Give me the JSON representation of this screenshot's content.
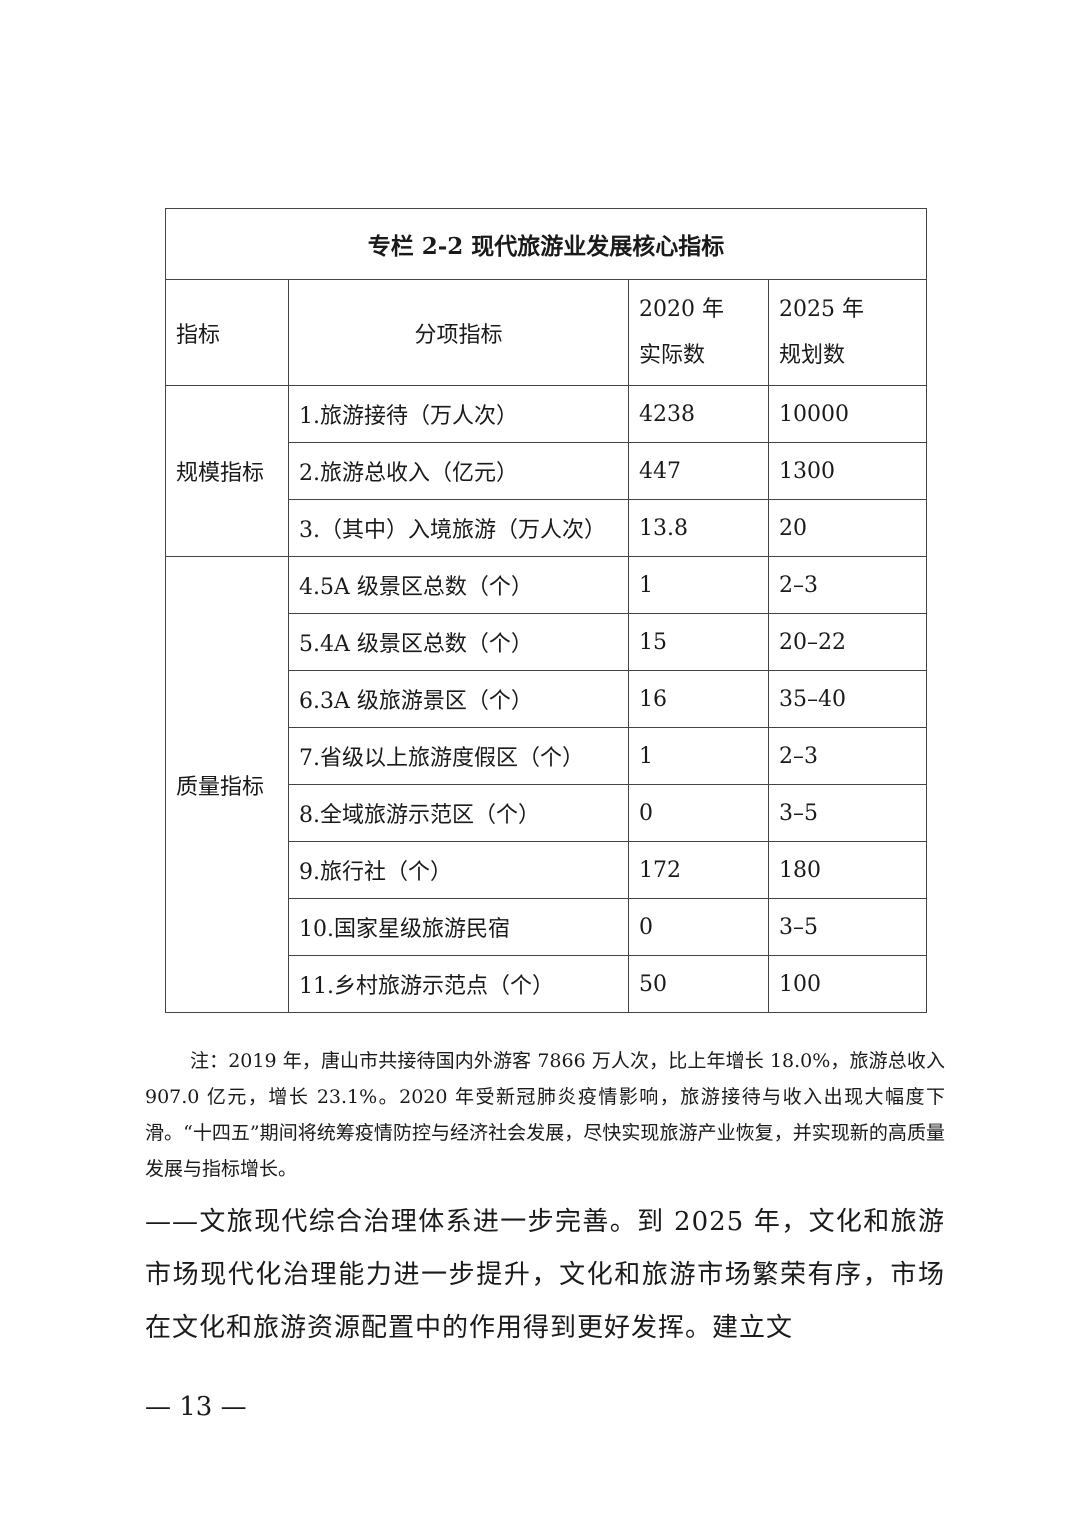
{
  "table": {
    "title": "专栏 2-2 现代旅游业发展核心指标",
    "headers": {
      "indicator": "指标",
      "sub_indicator": "分项指标",
      "actual_2020_line1": "2020 年",
      "actual_2020_line2": "实际数",
      "plan_2025_line1": "2025 年",
      "plan_2025_line2": "规划数"
    },
    "groups": [
      {
        "name": "规模指标",
        "rows": [
          {
            "item": "1.旅游接待（万人次）",
            "actual_2020": "4238",
            "plan_2025": "10000"
          },
          {
            "item": "2.旅游总收入（亿元）",
            "actual_2020": "447",
            "plan_2025": "1300"
          },
          {
            "item": "3.（其中）入境旅游（万人次）",
            "actual_2020": "13.8",
            "plan_2025": "20"
          }
        ]
      },
      {
        "name": "质量指标",
        "rows": [
          {
            "item": "4.5A 级景区总数（个）",
            "actual_2020": "1",
            "plan_2025": "2–3"
          },
          {
            "item": "5.4A 级景区总数（个）",
            "actual_2020": "15",
            "plan_2025": "20–22"
          },
          {
            "item": "6.3A 级旅游景区（个）",
            "actual_2020": "16",
            "plan_2025": "35–40"
          },
          {
            "item": "7.省级以上旅游度假区（个）",
            "actual_2020": "1",
            "plan_2025": "2–3"
          },
          {
            "item": "8.全域旅游示范区（个）",
            "actual_2020": "0",
            "plan_2025": "3–5"
          },
          {
            "item": "9.旅行社（个）",
            "actual_2020": "172",
            "plan_2025": "180"
          },
          {
            "item": "10.国家星级旅游民宿",
            "actual_2020": "0",
            "plan_2025": "3–5"
          },
          {
            "item": "11.乡村旅游示范点（个）",
            "actual_2020": "50",
            "plan_2025": "100"
          }
        ]
      }
    ]
  },
  "note": "注：2019 年，唐山市共接待国内外游客 7866 万人次，比上年增长 18.0%，旅游总收入 907.0 亿元，增长 23.1%。2020 年受新冠肺炎疫情影响，旅游接待与收入出现大幅度下滑。“十四五”期间将统筹疫情防控与经济社会发展，尽快实现旅游产业恢复，并实现新的高质量发展与指标增长。",
  "body_text": "——文旅现代综合治理体系进一步完善。到 2025 年，文化和旅游市场现代化治理能力进一步提升，文化和旅游市场繁荣有序，市场在文化和旅游资源配置中的作用得到更好发挥。建立文",
  "page_number": "— 13 —"
}
